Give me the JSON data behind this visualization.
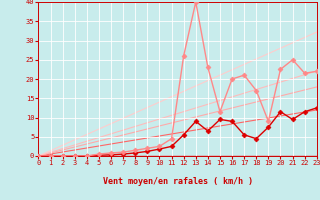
{
  "xlabel": "Vent moyen/en rafales ( km/h )",
  "background_color": "#c8ecec",
  "grid_color": "#ffffff",
  "xlim": [
    0,
    23
  ],
  "ylim": [
    0,
    40
  ],
  "xticks": [
    0,
    1,
    2,
    3,
    4,
    5,
    6,
    7,
    8,
    9,
    10,
    11,
    12,
    13,
    14,
    15,
    16,
    17,
    18,
    19,
    20,
    21,
    22,
    23
  ],
  "yticks": [
    0,
    5,
    10,
    15,
    20,
    25,
    30,
    35,
    40
  ],
  "linear_lines": [
    {
      "slope": 0.0,
      "color": "#ff0000",
      "lw": 1.0
    },
    {
      "slope": 0.52,
      "color": "#ff6666",
      "lw": 0.8
    },
    {
      "slope": 0.78,
      "color": "#ffaaaa",
      "lw": 0.8
    },
    {
      "slope": 0.96,
      "color": "#ffbbbb",
      "lw": 0.8
    },
    {
      "slope": 1.4,
      "color": "#ffcccc",
      "lw": 0.8
    }
  ],
  "data_series": [
    {
      "x": [
        0,
        1,
        2,
        3,
        4,
        5,
        6,
        7,
        8,
        9,
        10,
        11,
        12,
        13,
        14,
        15,
        16,
        17,
        18,
        19,
        20,
        21,
        22,
        23
      ],
      "y": [
        0,
        0,
        0,
        0,
        0,
        0.2,
        0.3,
        0.5,
        0.8,
        1.2,
        1.8,
        2.5,
        5.5,
        9.0,
        6.5,
        9.5,
        9.0,
        5.5,
        4.5,
        7.5,
        11.5,
        9.5,
        11.5,
        12.5
      ],
      "color": "#dd0000",
      "lw": 1.0,
      "marker": "D",
      "ms": 2.5
    },
    {
      "x": [
        0,
        1,
        2,
        3,
        4,
        5,
        6,
        7,
        8,
        9,
        10,
        11,
        12,
        13,
        14,
        15,
        16,
        17,
        18,
        19,
        20,
        21,
        22,
        23
      ],
      "y": [
        0,
        0,
        0,
        0,
        0,
        0.5,
        0.8,
        1.0,
        1.5,
        2.0,
        2.5,
        4.5,
        26.0,
        40.0,
        23.0,
        11.5,
        20.0,
        21.0,
        17.0,
        9.0,
        22.5,
        25.0,
        21.5,
        22.0
      ],
      "color": "#ff8888",
      "lw": 1.0,
      "marker": "D",
      "ms": 2.5
    }
  ]
}
